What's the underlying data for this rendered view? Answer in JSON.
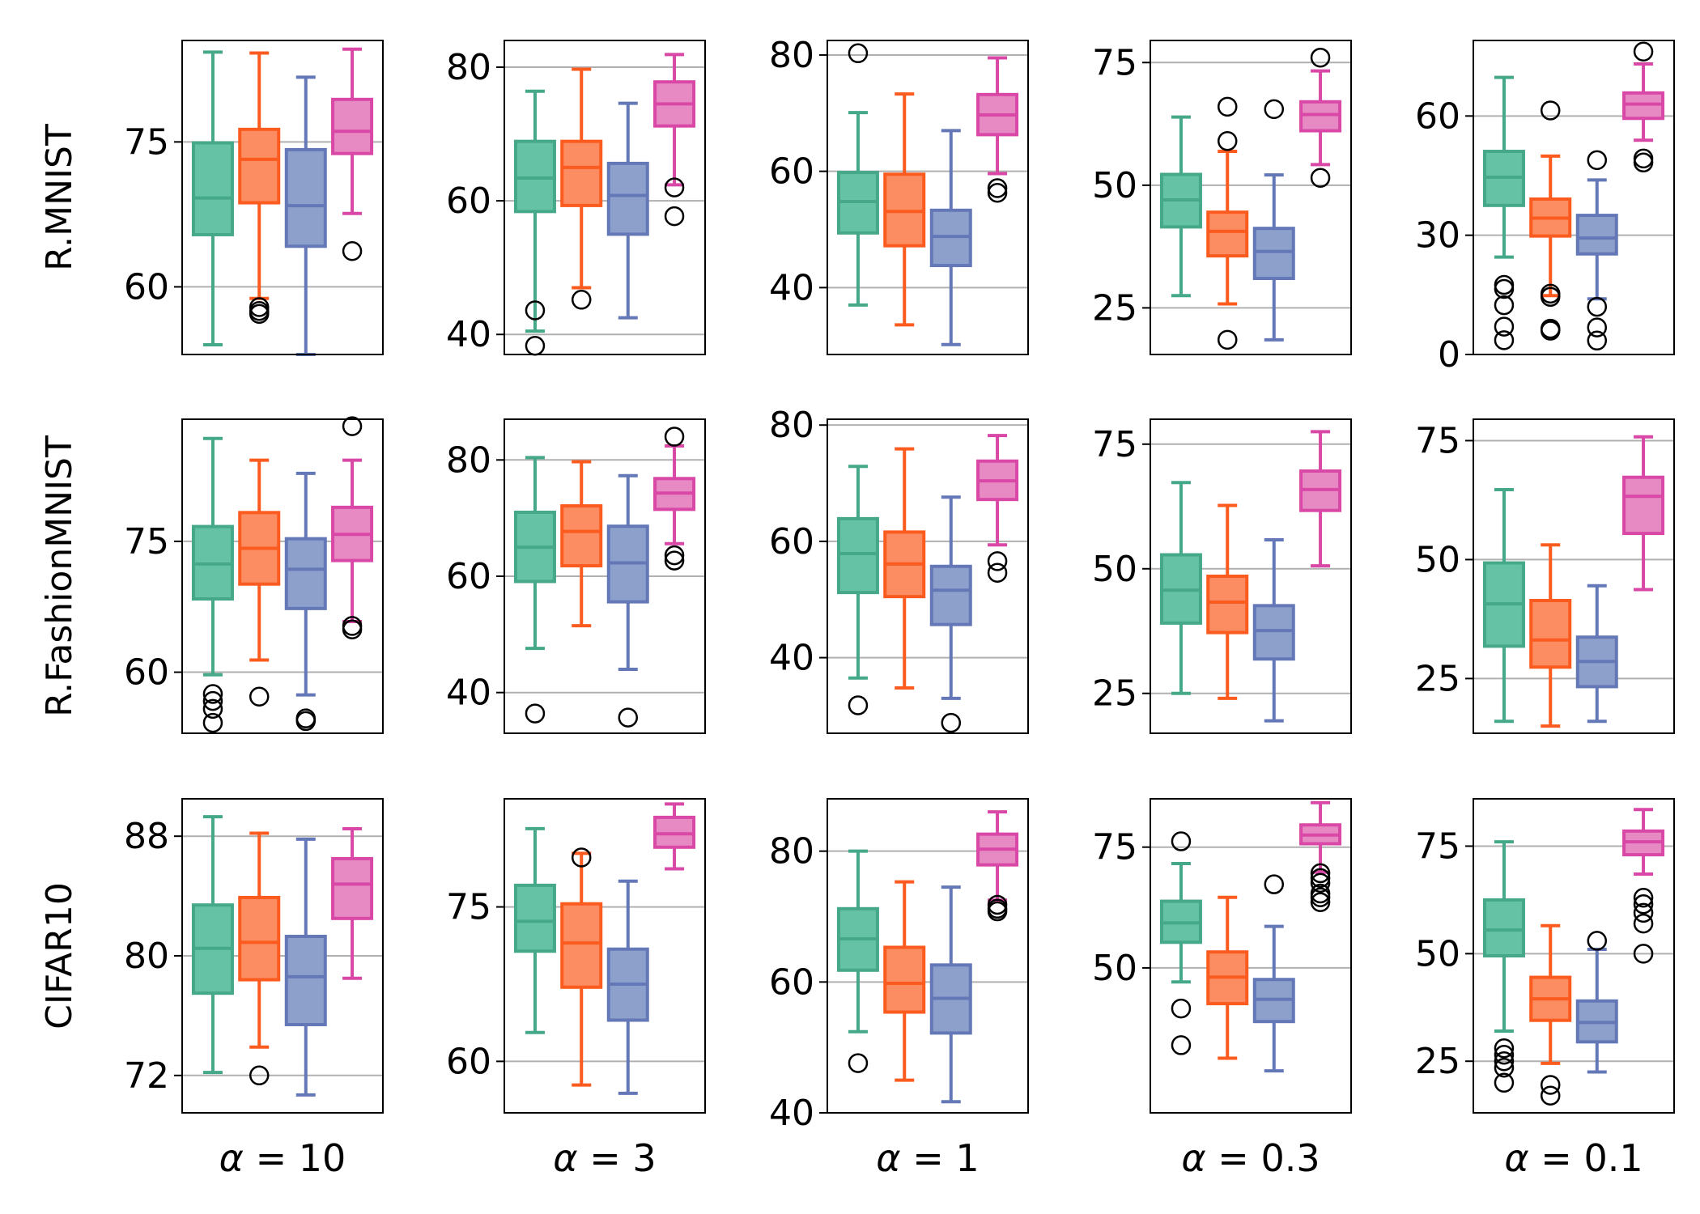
{
  "colors": {
    "series": [
      "#45a889",
      "#fb5b1e",
      "#6478b8",
      "#d948a6"
    ],
    "fills": [
      "#66c2a5",
      "#fc8d62",
      "#8da0cb",
      "#e78ac3"
    ],
    "grid": "#b0b0b0",
    "axis": "#000000"
  },
  "chart_data": {
    "type": "box",
    "grid": "horizontal",
    "columns": [
      {
        "prefix": "α",
        "eq": " = ",
        "value": "10"
      },
      {
        "prefix": "α",
        "eq": " = ",
        "value": "3"
      },
      {
        "prefix": "α",
        "eq": " = ",
        "value": "1"
      },
      {
        "prefix": "α",
        "eq": " = ",
        "value": "0.3"
      },
      {
        "prefix": "α",
        "eq": " = ",
        "value": "0.1"
      }
    ],
    "rows": [
      {
        "label": "R.MNIST",
        "panels": [
          {
            "ylim": [
              53,
              85.5
            ],
            "yticks": [
              60,
              75
            ],
            "boxes": [
              {
                "whislo": 54,
                "q1": 65.4,
                "med": 69.2,
                "q3": 74.9,
                "whishi": 84.3,
                "fliers": []
              },
              {
                "whislo": 58.8,
                "q1": 68.7,
                "med": 73.2,
                "q3": 76.3,
                "whishi": 84.2,
                "fliers": [
                  57.9,
                  57.5,
                  57.2
                ]
              },
              {
                "whislo": 53,
                "q1": 64.2,
                "med": 68.4,
                "q3": 74.2,
                "whishi": 81.7,
                "fliers": []
              },
              {
                "whislo": 67.6,
                "q1": 73.8,
                "med": 76.1,
                "q3": 79.4,
                "whishi": 84.6,
                "fliers": [
                  63.7
                ]
              }
            ]
          },
          {
            "ylim": [
              37,
              84
            ],
            "yticks": [
              40,
              60,
              80
            ],
            "boxes": [
              {
                "whislo": 40.5,
                "q1": 58.4,
                "med": 63.4,
                "q3": 68.9,
                "whishi": 76.4,
                "fliers": [
                  43.6,
                  38.3
                ]
              },
              {
                "whislo": 47,
                "q1": 59.3,
                "med": 65.0,
                "q3": 68.9,
                "whishi": 79.7,
                "fliers": [
                  45.2
                ]
              },
              {
                "whislo": 42.5,
                "q1": 55.0,
                "med": 60.8,
                "q3": 65.6,
                "whishi": 74.6,
                "fliers": []
              },
              {
                "whislo": 62.4,
                "q1": 71.2,
                "med": 74.5,
                "q3": 77.8,
                "whishi": 81.9,
                "fliers": [
                  62.0,
                  57.7
                ]
              }
            ]
          },
          {
            "ylim": [
              28.5,
              82.5
            ],
            "yticks": [
              40,
              60,
              80
            ],
            "boxes": [
              {
                "whislo": 37,
                "q1": 49.4,
                "med": 54.8,
                "q3": 59.8,
                "whishi": 70.1,
                "fliers": [
                  80.3
                ]
              },
              {
                "whislo": 33.6,
                "q1": 47.2,
                "med": 53.1,
                "q3": 59.5,
                "whishi": 73.3,
                "fliers": []
              },
              {
                "whislo": 30.2,
                "q1": 43.8,
                "med": 48.8,
                "q3": 53.3,
                "whishi": 67.0,
                "fliers": []
              },
              {
                "whislo": 59.6,
                "q1": 66.3,
                "med": 69.7,
                "q3": 73.2,
                "whishi": 79.5,
                "fliers": [
                  57.1,
                  56.3
                ]
              }
            ]
          },
          {
            "ylim": [
              15.5,
              79.5
            ],
            "yticks": [
              25,
              50,
              75
            ],
            "boxes": [
              {
                "whislo": 27.5,
                "q1": 41.5,
                "med": 47.0,
                "q3": 52.2,
                "whishi": 63.9,
                "fliers": []
              },
              {
                "whislo": 25.8,
                "q1": 35.6,
                "med": 40.6,
                "q3": 44.5,
                "whishi": 56.9,
                "fliers": [
                  59.0,
                  66.0,
                  18.5
                ]
              },
              {
                "whislo": 18.5,
                "q1": 31.0,
                "med": 36.5,
                "q3": 41.2,
                "whishi": 52.1,
                "fliers": [
                  65.5
                ]
              },
              {
                "whislo": 54.2,
                "q1": 61.1,
                "med": 64.4,
                "q3": 67.0,
                "whishi": 73.3,
                "fliers": [
                  51.5,
                  76.0
                ]
              }
            ]
          },
          {
            "ylim": [
              0,
              79
            ],
            "yticks": [
              0,
              30,
              60
            ],
            "boxes": [
              {
                "whislo": 24.5,
                "q1": 37.5,
                "med": 44.6,
                "q3": 51.1,
                "whishi": 69.7,
                "fliers": [
                  17.5,
                  16.5,
                  12.4,
                  7.0,
                  3.6
                ]
              },
              {
                "whislo": 14.8,
                "q1": 29.8,
                "med": 34.3,
                "q3": 39.1,
                "whishi": 49.9,
                "fliers": [
                  61.4,
                  15.3,
                  14.5,
                  6.5,
                  6.0
                ]
              },
              {
                "whislo": 14.0,
                "q1": 25.3,
                "med": 29.3,
                "q3": 35.0,
                "whishi": 43.9,
                "fliers": [
                  48.9,
                  12.0,
                  6.8,
                  3.5
                ]
              },
              {
                "whislo": 53.9,
                "q1": 59.4,
                "med": 63.0,
                "q3": 65.8,
                "whishi": 73.1,
                "fliers": [
                  76.2,
                  49.3,
                  48.3
                ]
              }
            ]
          }
        ]
      },
      {
        "label": "R.FashionMNIST",
        "panels": [
          {
            "ylim": [
              53,
              89
            ],
            "yticks": [
              60,
              75
            ],
            "boxes": [
              {
                "whislo": 59.7,
                "q1": 68.4,
                "med": 72.4,
                "q3": 76.7,
                "whishi": 86.8,
                "fliers": [
                  57.5,
                  56.7,
                  55.8,
                  54.2
                ]
              },
              {
                "whislo": 61.4,
                "q1": 70.1,
                "med": 74.2,
                "q3": 78.3,
                "whishi": 84.3,
                "fliers": [
                  57.2
                ]
              },
              {
                "whislo": 57.4,
                "q1": 67.3,
                "med": 71.8,
                "q3": 75.3,
                "whishi": 82.8,
                "fliers": [
                  54.7,
                  54.4
                ]
              },
              {
                "whislo": 65.8,
                "q1": 72.8,
                "med": 75.8,
                "q3": 78.9,
                "whishi": 84.3,
                "fliers": [
                  88.2,
                  65.3,
                  64.9
                ]
              }
            ]
          },
          {
            "ylim": [
              33,
              87
            ],
            "yticks": [
              40,
              60,
              80
            ],
            "boxes": [
              {
                "whislo": 47.6,
                "q1": 59.1,
                "med": 65.0,
                "q3": 71.0,
                "whishi": 80.4,
                "fliers": [
                  36.4
                ]
              },
              {
                "whislo": 51.5,
                "q1": 61.8,
                "med": 67.7,
                "q3": 72.1,
                "whishi": 79.7,
                "fliers": []
              },
              {
                "whislo": 44.0,
                "q1": 55.6,
                "med": 62.3,
                "q3": 68.6,
                "whishi": 77.3,
                "fliers": [
                  35.7
                ]
              },
              {
                "whislo": 65.6,
                "q1": 71.5,
                "med": 74.3,
                "q3": 76.8,
                "whishi": 82.4,
                "fliers": [
                  84.0,
                  63.6,
                  62.7
                ]
              }
            ]
          },
          {
            "ylim": [
              27,
              81
            ],
            "yticks": [
              40,
              60,
              80
            ],
            "boxes": [
              {
                "whislo": 36.5,
                "q1": 51.2,
                "med": 57.9,
                "q3": 63.9,
                "whishi": 72.9,
                "fliers": [
                  31.8
                ]
              },
              {
                "whislo": 34.8,
                "q1": 50.5,
                "med": 56.1,
                "q3": 61.6,
                "whishi": 75.9,
                "fliers": []
              },
              {
                "whislo": 33.0,
                "q1": 45.7,
                "med": 51.6,
                "q3": 55.7,
                "whishi": 67.6,
                "fliers": [
                  28.8
                ]
              },
              {
                "whislo": 59.4,
                "q1": 67.2,
                "med": 70.4,
                "q3": 73.8,
                "whishi": 78.2,
                "fliers": [
                  56.6,
                  54.6
                ]
              }
            ]
          },
          {
            "ylim": [
              17,
              80
            ],
            "yticks": [
              25,
              50,
              75
            ],
            "boxes": [
              {
                "whislo": 25.0,
                "q1": 39.1,
                "med": 45.7,
                "q3": 52.8,
                "whishi": 67.3,
                "fliers": []
              },
              {
                "whislo": 24.0,
                "q1": 37.2,
                "med": 43.3,
                "q3": 48.5,
                "whishi": 62.7,
                "fliers": []
              },
              {
                "whislo": 19.5,
                "q1": 31.9,
                "med": 37.6,
                "q3": 42.6,
                "whishi": 55.8,
                "fliers": []
              },
              {
                "whislo": 50.6,
                "q1": 61.7,
                "med": 65.9,
                "q3": 69.6,
                "whishi": 77.5,
                "fliers": []
              }
            ]
          },
          {
            "ylim": [
              13.5,
              79.5
            ],
            "yticks": [
              25,
              50,
              75
            ],
            "boxes": [
              {
                "whislo": 16.0,
                "q1": 31.8,
                "med": 40.7,
                "q3": 49.3,
                "whishi": 64.7,
                "fliers": []
              },
              {
                "whislo": 15.0,
                "q1": 27.4,
                "med": 33.1,
                "q3": 41.4,
                "whishi": 53.1,
                "fliers": []
              },
              {
                "whislo": 16.0,
                "q1": 23.3,
                "med": 28.6,
                "q3": 33.7,
                "whishi": 44.5,
                "fliers": []
              },
              {
                "whislo": 43.7,
                "q1": 55.5,
                "med": 63.3,
                "q3": 67.3,
                "whishi": 75.8,
                "fliers": []
              }
            ]
          }
        ]
      },
      {
        "label": "CIFAR10",
        "panels": [
          {
            "ylim": [
              69.5,
              90.5
            ],
            "yticks": [
              72,
              80,
              88
            ],
            "boxes": [
              {
                "whislo": 72.2,
                "q1": 77.5,
                "med": 80.5,
                "q3": 83.4,
                "whishi": 89.3,
                "fliers": []
              },
              {
                "whislo": 73.9,
                "q1": 78.4,
                "med": 80.9,
                "q3": 83.9,
                "whishi": 88.2,
                "fliers": [
                  72.0
                ]
              },
              {
                "whislo": 70.7,
                "q1": 75.4,
                "med": 78.6,
                "q3": 81.3,
                "whishi": 87.8,
                "fliers": []
              },
              {
                "whislo": 78.5,
                "q1": 82.5,
                "med": 84.8,
                "q3": 86.5,
                "whishi": 88.5,
                "fliers": []
              }
            ]
          },
          {
            "ylim": [
              55,
              85.5
            ],
            "yticks": [
              60,
              75
            ],
            "boxes": [
              {
                "whislo": 62.8,
                "q1": 70.7,
                "med": 73.6,
                "q3": 77.1,
                "whishi": 82.6,
                "fliers": []
              },
              {
                "whislo": 57.7,
                "q1": 67.2,
                "med": 71.5,
                "q3": 75.3,
                "whishi": 80.2,
                "fliers": [
                  79.8
                ]
              },
              {
                "whislo": 56.9,
                "q1": 64.0,
                "med": 67.5,
                "q3": 70.9,
                "whishi": 77.5,
                "fliers": []
              },
              {
                "whislo": 78.7,
                "q1": 80.8,
                "med": 82.1,
                "q3": 83.7,
                "whishi": 85.0,
                "fliers": []
              }
            ]
          },
          {
            "ylim": [
              40,
              88
            ],
            "yticks": [
              40,
              60,
              80
            ],
            "boxes": [
              {
                "whislo": 52.4,
                "q1": 61.8,
                "med": 66.6,
                "q3": 71.2,
                "whishi": 80.0,
                "fliers": [
                  47.6
                ]
              },
              {
                "whislo": 45.0,
                "q1": 55.4,
                "med": 59.8,
                "q3": 65.3,
                "whishi": 75.3,
                "fliers": []
              },
              {
                "whislo": 41.7,
                "q1": 52.2,
                "med": 57.5,
                "q3": 62.6,
                "whishi": 74.5,
                "fliers": []
              },
              {
                "whislo": 72.5,
                "q1": 77.9,
                "med": 80.3,
                "q3": 82.6,
                "whishi": 86.0,
                "fliers": [
                  71.8,
                  71.2,
                  70.8
                ]
              }
            ]
          },
          {
            "ylim": [
              20,
              85
            ],
            "yticks": [
              50,
              75
            ],
            "boxes": [
              {
                "whislo": 47.1,
                "q1": 55.3,
                "med": 59.3,
                "q3": 63.8,
                "whishi": 71.6,
                "fliers": [
                  76.2,
                  41.6,
                  34.0
                ]
              },
              {
                "whislo": 31.3,
                "q1": 42.6,
                "med": 48.1,
                "q3": 53.3,
                "whishi": 64.6,
                "fliers": []
              },
              {
                "whislo": 28.7,
                "q1": 38.9,
                "med": 43.5,
                "q3": 47.6,
                "whishi": 58.6,
                "fliers": [
                  67.3
                ]
              },
              {
                "whislo": 69.8,
                "q1": 75.7,
                "med": 77.5,
                "q3": 79.6,
                "whishi": 84.2,
                "fliers": [
                  69.6,
                  68.6,
                  67.6,
                  65.4,
                  64.6,
                  63.6
                ]
              }
            ]
          },
          {
            "ylim": [
              13,
              86
            ],
            "yticks": [
              25,
              50,
              75
            ],
            "boxes": [
              {
                "whislo": 32.0,
                "q1": 49.5,
                "med": 55.5,
                "q3": 62.5,
                "whishi": 76.0,
                "fliers": [
                  28.0,
                  26.5,
                  25.0,
                  23.5,
                  20.0
                ]
              },
              {
                "whislo": 24.5,
                "q1": 34.5,
                "med": 39.5,
                "q3": 44.5,
                "whishi": 56.5,
                "fliers": [
                  19.5,
                  17.0
                ]
              },
              {
                "whislo": 22.5,
                "q1": 29.5,
                "med": 34.0,
                "q3": 39.0,
                "whishi": 51.0,
                "fliers": [
                  53.0
                ]
              },
              {
                "whislo": 68.5,
                "q1": 73.0,
                "med": 76.0,
                "q3": 78.5,
                "whishi": 83.5,
                "fliers": [
                  63.0,
                  61.5,
                  59.5,
                  57.0,
                  50.0
                ]
              }
            ]
          }
        ]
      }
    ]
  }
}
